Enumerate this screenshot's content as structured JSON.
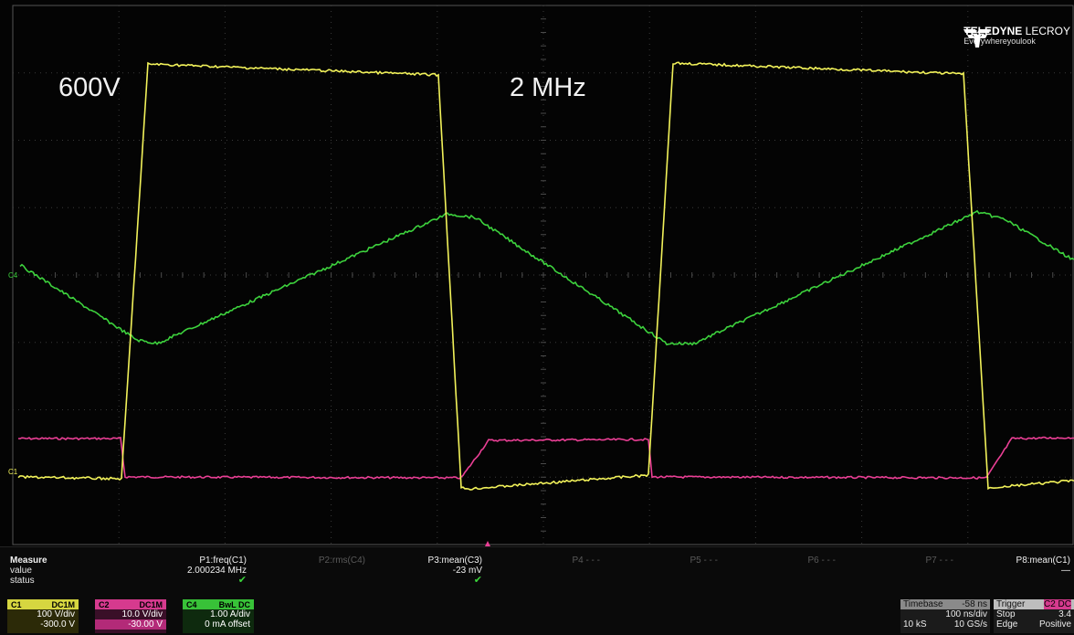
{
  "overlay": {
    "voltage_label": "600V",
    "frequency_label": "2 MHz"
  },
  "logo": {
    "brand_bold": "TELEDYNE",
    "brand_light": "LECROY",
    "tagline": "Everywhereyoulook"
  },
  "channel_markers": {
    "c4": "C4",
    "c1": "C1"
  },
  "measure": {
    "title": "Measure",
    "row_value": "value",
    "row_status": "status",
    "params": [
      {
        "name": "P1:freq(C1)",
        "value": "2.000234 MHz",
        "status": "✔"
      },
      {
        "name": "P2:rms(C4)",
        "value": "",
        "status": ""
      },
      {
        "name": "P3:mean(C3)",
        "value": "-23 mV",
        "status": "✔"
      },
      {
        "name": "P4 - - -",
        "value": "",
        "status": ""
      },
      {
        "name": "P5 - - -",
        "value": "",
        "status": ""
      },
      {
        "name": "P6 - - -",
        "value": "",
        "status": ""
      },
      {
        "name": "P7 - - -",
        "value": "",
        "status": ""
      },
      {
        "name": "P8:mean(C1)",
        "value": "—",
        "status": ""
      }
    ]
  },
  "channels": [
    {
      "id": "C1",
      "coupling": "DC1M",
      "scale": "100 V/div",
      "offset": "-300.0 V",
      "color": "#e8e84a"
    },
    {
      "id": "C2",
      "coupling": "DC1M",
      "scale": "10.0 V/div",
      "offset": "-30.00 V",
      "color": "#e23c9a"
    },
    {
      "id": "C4",
      "coupling": "BwL DC",
      "scale": "1.00 A/div",
      "offset": "0 mA offset",
      "color": "#3fd23f"
    }
  ],
  "timebase": {
    "label": "Timebase",
    "delay": "-58 ns",
    "scale": "100 ns/div",
    "samples": "10 kS",
    "rate": "10 GS/s"
  },
  "trigger": {
    "label": "Trigger",
    "source": "C2 DC",
    "mode": "Stop",
    "type": "Edge",
    "level": "3.4",
    "slope": "Positive"
  },
  "colors": {
    "c1": "#f2f25a",
    "c2": "#ea3f95",
    "c4": "#3dd23d",
    "grid": "#3a3a3a"
  }
}
